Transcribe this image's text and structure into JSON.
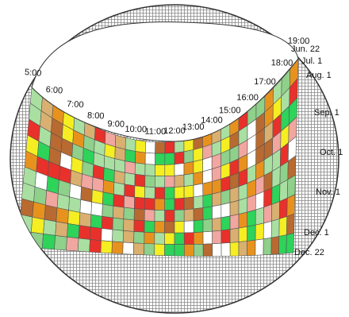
{
  "hour_labels": [
    "5:00",
    "6:00",
    "7:00",
    "8:00",
    "9:00",
    "10:00",
    "11:00",
    "12:00",
    "13:00",
    "14:00",
    "15:00",
    "16:00",
    "17:00",
    "18:00",
    "19:00"
  ],
  "date_labels": [
    "Jun. 22",
    "Jul. 1",
    "Aug. 1",
    "Sep. 1",
    "Oct. 1",
    "Nov. 1",
    "Dec. 1",
    "Dec. 22"
  ]
}
